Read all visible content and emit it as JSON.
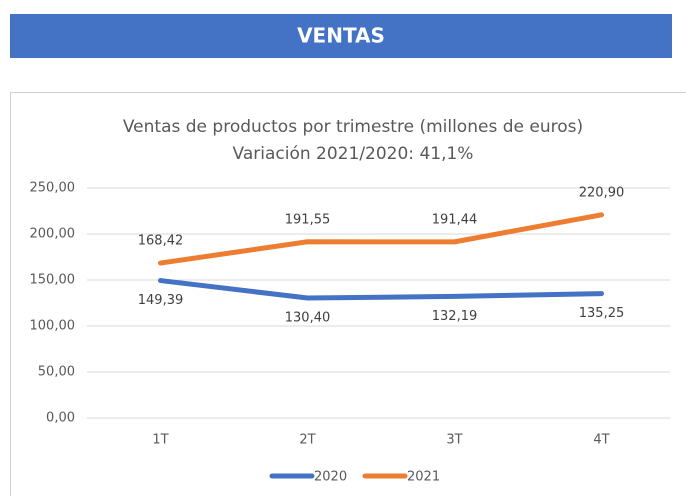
{
  "header": "VENTAS",
  "chart_data": {
    "type": "line",
    "title": "Ventas de productos por trimestre (millones de euros)",
    "subtitle": "Variación 2021/2020: 41,1%",
    "categories": [
      "1T",
      "2T",
      "3T",
      "4T"
    ],
    "series": [
      {
        "name": "2020",
        "color": "#4472c4",
        "values": [
          149.39,
          130.4,
          132.19,
          135.25
        ],
        "value_labels": [
          "149,39",
          "130,40",
          "132,19",
          "135,25"
        ]
      },
      {
        "name": "2021",
        "color": "#ed7d31",
        "values": [
          168.42,
          191.55,
          191.44,
          220.9
        ],
        "value_labels": [
          "168,42",
          "191,55",
          "191,44",
          "220,90"
        ]
      }
    ],
    "ylim": [
      0,
      250
    ],
    "yticks": [
      {
        "value": 0,
        "label": "0,00"
      },
      {
        "value": 50,
        "label": "50,00"
      },
      {
        "value": 100,
        "label": "100,00"
      },
      {
        "value": 150,
        "label": "150,00"
      },
      {
        "value": 200,
        "label": "200,00"
      },
      {
        "value": 250,
        "label": "250,00"
      }
    ],
    "grid": true,
    "legend": "bottom"
  }
}
